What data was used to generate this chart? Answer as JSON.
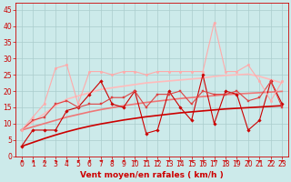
{
  "background_color": "#cceaea",
  "grid_color": "#aacccc",
  "xlabel": "Vent moyen/en rafales ( km/h )",
  "xlabel_color": "#cc0000",
  "xlabel_fontsize": 6.5,
  "tick_color": "#cc0000",
  "tick_fontsize": 5.5,
  "ylim": [
    0,
    47
  ],
  "xlim": [
    -0.5,
    23.5
  ],
  "yticks": [
    0,
    5,
    10,
    15,
    20,
    25,
    30,
    35,
    40,
    45
  ],
  "xticks": [
    0,
    1,
    2,
    3,
    4,
    5,
    6,
    7,
    8,
    9,
    10,
    11,
    12,
    13,
    14,
    15,
    16,
    17,
    18,
    19,
    20,
    21,
    22,
    23
  ],
  "series": [
    {
      "x": [
        0,
        1,
        2,
        3,
        4,
        5,
        6,
        7,
        8,
        9,
        10,
        11,
        12,
        13,
        14,
        15,
        16,
        17,
        18,
        19,
        20,
        21,
        22,
        23
      ],
      "y": [
        3,
        8,
        8,
        8,
        14,
        15,
        19,
        23,
        16,
        15,
        20,
        7,
        8,
        20,
        15,
        11,
        25,
        10,
        20,
        19,
        8,
        11,
        23,
        16
      ],
      "color": "#cc0000",
      "lw": 0.8,
      "marker": "D",
      "ms": 1.8,
      "linestyle": "-",
      "zorder": 4
    },
    {
      "x": [
        0,
        1,
        2,
        3,
        4,
        5,
        6,
        7,
        8,
        9,
        10,
        11,
        12,
        13,
        14,
        15,
        16,
        17,
        18,
        19,
        20,
        21,
        22,
        23
      ],
      "y": [
        8,
        11,
        12,
        16,
        17,
        15,
        16,
        16,
        18,
        18,
        20,
        15,
        19,
        19,
        20,
        16,
        20,
        19,
        19,
        20,
        17,
        18,
        23,
        15
      ],
      "color": "#dd4444",
      "lw": 0.8,
      "marker": "s",
      "ms": 1.8,
      "linestyle": "-",
      "zorder": 4
    },
    {
      "x": [
        0,
        1,
        2,
        3,
        4,
        5,
        6,
        7,
        8,
        9,
        10,
        11,
        12,
        13,
        14,
        15,
        16,
        17,
        18,
        19,
        20,
        21,
        22,
        23
      ],
      "y": [
        8,
        12,
        16,
        27,
        28,
        16,
        26,
        26,
        25,
        26,
        26,
        25,
        26,
        26,
        26,
        26,
        26,
        41,
        26,
        26,
        28,
        23,
        17,
        23
      ],
      "color": "#ffaaaa",
      "lw": 0.8,
      "marker": "o",
      "ms": 1.8,
      "linestyle": "-",
      "zorder": 4
    },
    {
      "x": [
        0,
        1,
        2,
        3,
        4,
        5,
        6,
        7,
        8,
        9,
        10,
        11,
        12,
        13,
        14,
        15,
        16,
        17,
        18,
        19,
        20,
        21,
        22,
        23
      ],
      "y": [
        3.0,
        4.2,
        5.4,
        6.5,
        7.5,
        8.4,
        9.2,
        9.9,
        10.5,
        11.1,
        11.6,
        12.1,
        12.5,
        12.9,
        13.3,
        13.6,
        13.9,
        14.2,
        14.5,
        14.7,
        14.9,
        15.1,
        15.3,
        15.5
      ],
      "color": "#cc0000",
      "lw": 1.2,
      "marker": null,
      "ms": 0,
      "linestyle": "-",
      "zorder": 3
    },
    {
      "x": [
        0,
        1,
        2,
        3,
        4,
        5,
        6,
        7,
        8,
        9,
        10,
        11,
        12,
        13,
        14,
        15,
        16,
        17,
        18,
        19,
        20,
        21,
        22,
        23
      ],
      "y": [
        8.0,
        9.0,
        10.0,
        11.0,
        12.0,
        12.8,
        13.6,
        14.3,
        14.9,
        15.5,
        16.0,
        16.5,
        16.9,
        17.3,
        17.7,
        18.0,
        18.3,
        18.6,
        18.9,
        19.1,
        19.3,
        19.5,
        19.7,
        19.9
      ],
      "color": "#ee7777",
      "lw": 1.2,
      "marker": null,
      "ms": 0,
      "linestyle": "-",
      "zorder": 3
    },
    {
      "x": [
        0,
        1,
        2,
        3,
        4,
        5,
        6,
        7,
        8,
        9,
        10,
        11,
        12,
        13,
        14,
        15,
        16,
        17,
        18,
        19,
        20,
        21,
        22,
        23
      ],
      "y": [
        8.0,
        10.5,
        13.0,
        15.5,
        17.5,
        18.5,
        19.5,
        20.5,
        21.0,
        21.5,
        22.0,
        22.5,
        22.8,
        23.1,
        23.4,
        23.7,
        24.0,
        24.5,
        24.8,
        25.0,
        25.2,
        24.5,
        23.5,
        22.5
      ],
      "color": "#ffbbbb",
      "lw": 1.2,
      "marker": null,
      "ms": 0,
      "linestyle": "-",
      "zorder": 3
    }
  ],
  "wind_arrow_color": "#cc0000",
  "wind_arrows_angles": [
    135,
    110,
    90,
    125,
    180,
    180,
    180,
    180,
    180,
    180,
    180,
    180,
    180,
    180,
    180,
    170,
    175,
    180,
    175,
    175,
    180,
    145,
    155,
    155
  ]
}
